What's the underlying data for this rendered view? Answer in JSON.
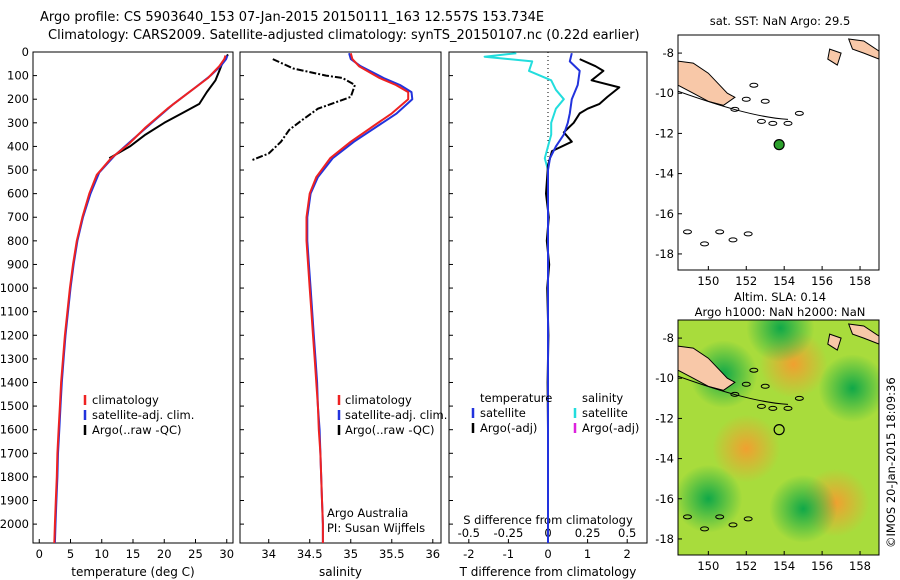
{
  "header": {
    "line1": "Argo profile: CS 5903640_153 07-Jan-2015 20150111_163 12.557S 153.734E",
    "line2": "Climatology: CARS2009. Satellite-adjusted climatology: synTS_20150107.nc (0.22d earlier)"
  },
  "footer": {
    "credit": "©IMOS 20-Jan-2015 18:09:36"
  },
  "chart_data": [
    {
      "id": "temperature",
      "type": "line",
      "xlabel": "temperature (deg C)",
      "xlim": [
        -1,
        31
      ],
      "xticks": [
        0,
        5,
        10,
        15,
        20,
        25,
        30
      ],
      "xticklabels": [
        "0",
        "5",
        "10",
        "15",
        "20",
        "25",
        "30"
      ],
      "ylim": [
        2080,
        0
      ],
      "yticks": [
        0,
        100,
        200,
        300,
        400,
        500,
        600,
        700,
        800,
        900,
        1000,
        1100,
        1200,
        1300,
        1400,
        1500,
        1600,
        1700,
        1800,
        1900,
        2000
      ],
      "yticklabels": [
        "0",
        "100",
        "200",
        "300",
        "400",
        "500",
        "600",
        "700",
        "800",
        "900",
        "1000",
        "1100",
        "1200",
        "1300",
        "1400",
        "1500",
        "1600",
        "1700",
        "1800",
        "1900",
        "2000"
      ],
      "legend": {
        "placement": "lower-middle",
        "entries": [
          "climatology",
          "satellite-adj. clim.",
          "Argo(..raw -QC)"
        ]
      },
      "series": [
        {
          "name": "climatology",
          "color": "#ee2222",
          "points": [
            [
              29.8,
              15
            ],
            [
              29.6,
              30
            ],
            [
              28.8,
              60
            ],
            [
              27,
              110
            ],
            [
              24,
              170
            ],
            [
              20.5,
              240
            ],
            [
              17,
              320
            ],
            [
              14.3,
              390
            ],
            [
              11.5,
              450
            ],
            [
              9.2,
              520
            ],
            [
              8,
              600
            ],
            [
              6.9,
              700
            ],
            [
              6,
              800
            ],
            [
              5.4,
              900
            ],
            [
              4.9,
              1000
            ],
            [
              4.5,
              1100
            ],
            [
              4.1,
              1200
            ],
            [
              3.8,
              1300
            ],
            [
              3.5,
              1400
            ],
            [
              3.3,
              1500
            ],
            [
              3.1,
              1600
            ],
            [
              2.9,
              1700
            ],
            [
              2.8,
              1800
            ],
            [
              2.65,
              1900
            ],
            [
              2.5,
              2000
            ],
            [
              2.4,
              2080
            ]
          ]
        },
        {
          "name": "satellite-adj. clim.",
          "color": "#2233dd",
          "points": [
            [
              30.1,
              15
            ],
            [
              29.9,
              30
            ],
            [
              29,
              60
            ],
            [
              27.4,
              100
            ],
            [
              25,
              150
            ],
            [
              21.5,
              220
            ],
            [
              18,
              300
            ],
            [
              15,
              370
            ],
            [
              12,
              440
            ],
            [
              9.6,
              510
            ],
            [
              8.2,
              600
            ],
            [
              7,
              700
            ],
            [
              6.1,
              800
            ],
            [
              5.5,
              900
            ],
            [
              5,
              1000
            ],
            [
              4.6,
              1100
            ],
            [
              4.2,
              1200
            ],
            [
              3.9,
              1300
            ],
            [
              3.6,
              1400
            ],
            [
              3.4,
              1500
            ],
            [
              3.2,
              1600
            ],
            [
              3,
              1700
            ],
            [
              2.9,
              1800
            ],
            [
              2.75,
              1900
            ],
            [
              2.6,
              2000
            ],
            [
              2.5,
              2080
            ]
          ]
        },
        {
          "name": "Argo(..raw -QC)",
          "color": "#000000",
          "points": [
            [
              30.2,
              10
            ],
            [
              29.4,
              40
            ],
            [
              28.8,
              80
            ],
            [
              28.2,
              120
            ],
            [
              26.8,
              170
            ],
            [
              25.6,
              220
            ],
            [
              22.8,
              260
            ],
            [
              20,
              300
            ],
            [
              17,
              350
            ],
            [
              14.5,
              400
            ],
            [
              11.2,
              450
            ]
          ]
        }
      ]
    },
    {
      "id": "salinity",
      "type": "line",
      "xlabel": "salinity",
      "xlim": [
        33.65,
        36.1
      ],
      "xticks": [
        34,
        34.5,
        35,
        35.5,
        36
      ],
      "xticklabels": [
        "34",
        "34.5",
        "35",
        "35.5",
        "36"
      ],
      "ylim": [
        2080,
        0
      ],
      "legend": {
        "placement": "lower-right",
        "entries": [
          "climatology",
          "satellite-adj. clim.",
          "Argo(..raw -QC)"
        ]
      },
      "annotation": {
        "line1": "Argo Australia",
        "line2": "PI: Susan Wijffels"
      },
      "series": [
        {
          "name": "climatology",
          "color": "#ee2222",
          "points": [
            [
              35,
              5
            ],
            [
              35.02,
              30
            ],
            [
              35.1,
              60
            ],
            [
              35.35,
              110
            ],
            [
              35.55,
              140
            ],
            [
              35.7,
              170
            ],
            [
              35.7,
              200
            ],
            [
              35.5,
              260
            ],
            [
              35.25,
              320
            ],
            [
              35.0,
              380
            ],
            [
              34.75,
              450
            ],
            [
              34.58,
              530
            ],
            [
              34.5,
              600
            ],
            [
              34.46,
              700
            ],
            [
              34.46,
              800
            ],
            [
              34.48,
              900
            ],
            [
              34.5,
              1000
            ],
            [
              34.52,
              1100
            ],
            [
              34.54,
              1200
            ],
            [
              34.56,
              1300
            ],
            [
              34.58,
              1400
            ],
            [
              34.6,
              1500
            ],
            [
              34.61,
              1600
            ],
            [
              34.63,
              1700
            ],
            [
              34.64,
              1800
            ],
            [
              34.65,
              1900
            ],
            [
              34.66,
              2000
            ],
            [
              34.66,
              2080
            ]
          ]
        },
        {
          "name": "satellite-adj. clim.",
          "color": "#2233dd",
          "points": [
            [
              34.98,
              5
            ],
            [
              35,
              30
            ],
            [
              35.12,
              60
            ],
            [
              35.4,
              110
            ],
            [
              35.6,
              140
            ],
            [
              35.74,
              170
            ],
            [
              35.75,
              200
            ],
            [
              35.56,
              260
            ],
            [
              35.3,
              320
            ],
            [
              35.04,
              380
            ],
            [
              34.78,
              450
            ],
            [
              34.6,
              530
            ],
            [
              34.51,
              600
            ],
            [
              34.47,
              700
            ],
            [
              34.47,
              800
            ],
            [
              34.49,
              900
            ],
            [
              34.51,
              1000
            ],
            [
              34.53,
              1100
            ],
            [
              34.55,
              1200
            ],
            [
              34.57,
              1300
            ],
            [
              34.59,
              1400
            ],
            [
              34.6,
              1500
            ],
            [
              34.62,
              1600
            ],
            [
              34.63,
              1700
            ],
            [
              34.64,
              1800
            ],
            [
              34.65,
              1900
            ],
            [
              34.66,
              2000
            ],
            [
              34.66,
              2080
            ]
          ]
        },
        {
          "name": "Argo(..raw -QC)",
          "color": "#000000",
          "points": [
            [
              34.05,
              30
            ],
            [
              34.3,
              70
            ],
            [
              34.7,
              100
            ],
            [
              34.9,
              110
            ],
            [
              35.05,
              140
            ],
            [
              35.0,
              190
            ],
            [
              34.6,
              240
            ],
            [
              34.4,
              290
            ],
            [
              34.25,
              330
            ],
            [
              34.15,
              380
            ],
            [
              34.0,
              430
            ],
            [
              33.78,
              460
            ]
          ]
        }
      ]
    },
    {
      "id": "difference",
      "type": "line",
      "xlabel": "T difference from climatology",
      "xlabel_top": "S difference from climatology",
      "xlim": [
        -2.5,
        2.5
      ],
      "xticks": [
        -2,
        -1,
        0,
        1,
        2
      ],
      "xticklabels": [
        "-2",
        "-1",
        "0",
        "1",
        "2"
      ],
      "sticks": [
        -0.5,
        -0.25,
        0,
        0.25,
        0.5
      ],
      "sticklabels": [
        "-0.5",
        "-0.25",
        "0",
        "0.25",
        "0.5"
      ],
      "ylim": [
        2080,
        0
      ],
      "legend": {
        "placement": "middle",
        "temperature_title": "temperature",
        "salinity_title": "salinity",
        "temperature_entries": [
          "satellite",
          "Argo(-adj)"
        ],
        "salinity_entries": [
          "satellite",
          "Argo(-adj)"
        ]
      },
      "series": [
        {
          "name": "temperature satellite",
          "color": "#2233dd",
          "points": [
            [
              0.6,
              5
            ],
            [
              0.55,
              40
            ],
            [
              0.8,
              80
            ],
            [
              0.75,
              140
            ],
            [
              0.6,
              200
            ],
            [
              0.55,
              260
            ],
            [
              0.5,
              300
            ],
            [
              0.4,
              350
            ],
            [
              0.2,
              400
            ],
            [
              0.05,
              450
            ],
            [
              0,
              500
            ],
            [
              0,
              600
            ],
            [
              0,
              700
            ],
            [
              0,
              800
            ],
            [
              0,
              1000
            ],
            [
              0,
              1200
            ],
            [
              0,
              1400
            ],
            [
              0,
              1600
            ],
            [
              0,
              1800
            ],
            [
              0,
              2000
            ],
            [
              0,
              2080
            ]
          ]
        },
        {
          "name": "temperature Argo(-adj)",
          "color": "#000000",
          "points": [
            [
              0.8,
              30
            ],
            [
              1.2,
              60
            ],
            [
              1.4,
              80
            ],
            [
              1.1,
              120
            ],
            [
              1.8,
              150
            ],
            [
              1.5,
              190
            ],
            [
              1.3,
              220
            ],
            [
              1.0,
              240
            ],
            [
              0.8,
              260
            ],
            [
              0.65,
              300
            ],
            [
              0.4,
              340
            ],
            [
              0.6,
              380
            ],
            [
              0.1,
              420
            ],
            [
              0.0,
              480
            ],
            [
              -0.05,
              600
            ],
            [
              0.02,
              700
            ],
            [
              -0.03,
              800
            ],
            [
              0.03,
              900
            ],
            [
              -0.02,
              1000
            ],
            [
              0.01,
              1200
            ],
            [
              -0.01,
              1400
            ],
            [
              0,
              1600
            ],
            [
              0,
              1800
            ],
            [
              0,
              2000
            ],
            [
              0,
              2080
            ]
          ]
        },
        {
          "name": "salinity satellite",
          "color": "#22dddd",
          "points": [
            [
              -0.2,
              5
            ],
            [
              -0.4,
              20
            ],
            [
              -0.1,
              40
            ],
            [
              -0.12,
              80
            ],
            [
              0.02,
              120
            ],
            [
              0.05,
              160
            ],
            [
              0.1,
              200
            ],
            [
              0.05,
              240
            ],
            [
              0.02,
              300
            ],
            [
              0.02,
              350
            ],
            [
              0,
              400
            ],
            [
              -0.02,
              450
            ],
            [
              0,
              500
            ],
            [
              0,
              600
            ],
            [
              0,
              800
            ],
            [
              0,
              1000
            ],
            [
              0,
              1200
            ],
            [
              0,
              1400
            ],
            [
              0,
              1600
            ],
            [
              0,
              1800
            ],
            [
              0,
              2000
            ],
            [
              0,
              2080
            ]
          ]
        }
      ]
    },
    {
      "id": "sst-map",
      "type": "scatter",
      "title": "sat. SST: NaN Argo: 29.5",
      "xlim": [
        148.4,
        159
      ],
      "ylim": [
        -18.8,
        -7.1
      ],
      "xticks": [
        150,
        152,
        154,
        156,
        158
      ],
      "xticklabels": [
        "150",
        "152",
        "154",
        "156",
        "158"
      ],
      "yticks": [
        -8,
        -10,
        -12,
        -14,
        -16,
        -18
      ],
      "yticklabels": [
        "-8",
        "-10",
        "-12",
        "-14",
        "-16",
        "-18"
      ],
      "float_position": [
        153.734,
        -12.557
      ]
    },
    {
      "id": "sla-map",
      "type": "heatmap",
      "title_line1": "Altim. SLA: 0.14",
      "title_line2": "Argo h1000: NaN h2000: NaN",
      "xlim": [
        148.4,
        159
      ],
      "ylim": [
        -18.8,
        -7.1
      ],
      "xticks": [
        150,
        152,
        154,
        156,
        158
      ],
      "xticklabels": [
        "150",
        "152",
        "154",
        "156",
        "158"
      ],
      "yticks": [
        -8,
        -10,
        -12,
        -14,
        -16,
        -18
      ],
      "yticklabels": [
        "-8",
        "-10",
        "-12",
        "-14",
        "-16",
        "-18"
      ],
      "float_position": [
        153.734,
        -12.557
      ],
      "anomalies": [
        {
          "lon": 154.5,
          "lat": -9.3,
          "kind": "high"
        },
        {
          "lon": 152.0,
          "lat": -13.5,
          "kind": "high"
        },
        {
          "lon": 156.7,
          "lat": -16.2,
          "kind": "high"
        },
        {
          "lon": 150.8,
          "lat": -9.8,
          "kind": "low"
        },
        {
          "lon": 157.6,
          "lat": -10.5,
          "kind": "low"
        },
        {
          "lon": 155.0,
          "lat": -16.5,
          "kind": "low"
        },
        {
          "lon": 150.0,
          "lat": -16.0,
          "kind": "low"
        },
        {
          "lon": 153.8,
          "lat": -7.5,
          "kind": "low"
        }
      ]
    }
  ]
}
